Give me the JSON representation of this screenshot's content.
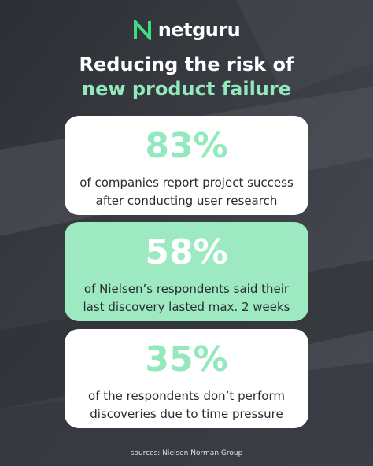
{
  "header": {
    "logo": "netguru",
    "title": {
      "line1": "Reducing the risk of",
      "line2": "new product failure"
    }
  },
  "cards": [
    {
      "stat": "83%",
      "lines": [
        "of companies report project success",
        "after conducting user research"
      ]
    },
    {
      "stat": "58%",
      "lines": [
        "of Nielsen’s respondents said their",
        "last discovery lasted max. 2 weeks"
      ]
    },
    {
      "stat": "35%",
      "lines": [
        "of the respondents don’t perform",
        "discoveries due to time pressure"
      ]
    }
  ],
  "footer": {
    "source": "sources: Nielsen Norman Group"
  }
}
